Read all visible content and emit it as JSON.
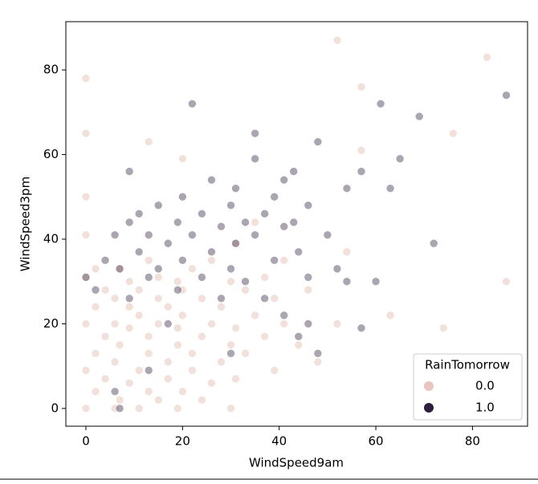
{
  "chart_data": {
    "type": "scatter",
    "xlabel": "WindSpeed9am",
    "ylabel": "WindSpeed3pm",
    "xlim": [
      -4.15,
      91.4
    ],
    "ylim": [
      -4.2,
      91.4
    ],
    "xticks": [
      0,
      20,
      40,
      60,
      80
    ],
    "yticks": [
      0,
      20,
      40,
      60,
      80
    ],
    "grid": false,
    "legend_title": "RainTomorrow",
    "legend_position": "lower right",
    "series": [
      {
        "name": "0.0",
        "color": "#e8c6be",
        "x": [
          0,
          0,
          0,
          0,
          0,
          0,
          0,
          0,
          2,
          2,
          2,
          2,
          4,
          4,
          4,
          6,
          6,
          6,
          6,
          7,
          7,
          7,
          9,
          9,
          9,
          9,
          11,
          11,
          11,
          11,
          13,
          13,
          13,
          13,
          15,
          15,
          15,
          15,
          17,
          17,
          17,
          19,
          19,
          19,
          19,
          20,
          20,
          20,
          22,
          22,
          22,
          24,
          24,
          24,
          26,
          26,
          26,
          28,
          28,
          30,
          30,
          30,
          31,
          31,
          31,
          33,
          33,
          35,
          35,
          37,
          37,
          39,
          39,
          41,
          41,
          44,
          46,
          48,
          52,
          54,
          57,
          63,
          74,
          76,
          83,
          87,
          52,
          57,
          13,
          20
        ],
        "values": [
          0,
          9,
          20,
          31,
          41,
          50,
          65,
          78,
          4,
          13,
          24,
          33,
          7,
          17,
          28,
          0,
          11,
          20,
          26,
          2,
          15,
          33,
          6,
          19,
          24,
          30,
          0,
          9,
          22,
          28,
          4,
          13,
          17,
          35,
          2,
          20,
          26,
          31,
          7,
          11,
          24,
          0,
          15,
          19,
          30,
          4,
          22,
          28,
          9,
          13,
          33,
          2,
          17,
          26,
          6,
          20,
          35,
          11,
          24,
          0,
          15,
          30,
          7,
          19,
          39,
          13,
          28,
          22,
          44,
          17,
          31,
          9,
          26,
          20,
          35,
          15,
          28,
          11,
          20,
          37,
          61,
          22,
          19,
          65,
          83,
          30,
          87,
          76,
          63,
          59
        ]
      },
      {
        "name": "1.0",
        "color": "#2d1e3e",
        "x": [
          0,
          2,
          4,
          6,
          6,
          7,
          7,
          9,
          9,
          9,
          11,
          11,
          13,
          13,
          13,
          15,
          15,
          17,
          17,
          19,
          19,
          20,
          20,
          22,
          22,
          24,
          24,
          26,
          26,
          28,
          28,
          30,
          30,
          30,
          31,
          31,
          33,
          33,
          35,
          35,
          37,
          37,
          39,
          39,
          41,
          41,
          43,
          43,
          44,
          44,
          46,
          46,
          48,
          48,
          50,
          52,
          54,
          57,
          57,
          61,
          63,
          65,
          69,
          72,
          87,
          60,
          54,
          46,
          41,
          35
        ],
        "values": [
          31,
          28,
          35,
          4,
          41,
          33,
          0,
          44,
          26,
          56,
          37,
          46,
          31,
          41,
          9,
          33,
          48,
          39,
          20,
          44,
          28,
          35,
          50,
          41,
          72,
          46,
          31,
          37,
          54,
          43,
          26,
          48,
          33,
          13,
          39,
          52,
          44,
          30,
          41,
          59,
          46,
          26,
          50,
          35,
          43,
          22,
          44,
          56,
          37,
          17,
          48,
          31,
          13,
          63,
          41,
          33,
          30,
          19,
          56,
          72,
          52,
          59,
          69,
          39,
          74,
          30,
          52,
          20,
          54,
          65
        ]
      }
    ]
  }
}
